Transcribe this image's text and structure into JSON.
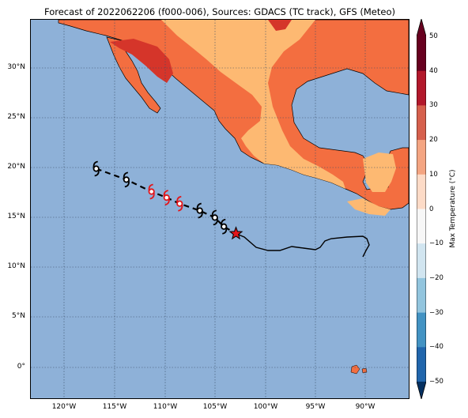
{
  "title": "Forecast of 2022062206 (f000-006), Sources: GDACS (TC track), GFS (Meteo)",
  "map": {
    "latitude_labels": [
      "30°N",
      "25°N",
      "20°N",
      "15°N",
      "10°N",
      "5°N",
      "0°"
    ],
    "longitude_labels": [
      "120°W",
      "115°W",
      "110°W",
      "105°W",
      "100°W",
      "95°W",
      "90°W"
    ]
  },
  "track": {
    "positions": [
      {
        "lon": -116.8,
        "lat": 19.9,
        "status": "forecast"
      },
      {
        "lon": -113.8,
        "lat": 18.8,
        "status": "forecast"
      },
      {
        "lon": -111.3,
        "lat": 17.6,
        "status": "current"
      },
      {
        "lon": -109.8,
        "lat": 17.0,
        "status": "current"
      },
      {
        "lon": -108.5,
        "lat": 16.4,
        "status": "current"
      },
      {
        "lon": -106.5,
        "lat": 15.7,
        "status": "forecast"
      },
      {
        "lon": -105.0,
        "lat": 15.0,
        "status": "forecast"
      },
      {
        "lon": -104.1,
        "lat": 14.1,
        "status": "forecast"
      },
      {
        "lon": -102.9,
        "lat": 13.4,
        "status": "origin"
      }
    ]
  },
  "colorbar": {
    "label": "Max Temperature (°C)",
    "ticks": [
      "50",
      "40",
      "30",
      "20",
      "10",
      "0",
      "−10",
      "−20",
      "−30",
      "−40",
      "−50"
    ],
    "colors": [
      "#67001f",
      "#b2182b",
      "#d6604d",
      "#f4a582",
      "#fddbc7",
      "#f7f7f7",
      "#d1e5f0",
      "#92c5de",
      "#4393c3",
      "#2166ac",
      "#053061"
    ]
  },
  "colors": {
    "ocean": "#8eb1d8",
    "land_hot": "#f36e40",
    "land_warm": "#fdb972",
    "land_very_hot": "#d5352a",
    "cyclone_red": "#e3161b"
  }
}
